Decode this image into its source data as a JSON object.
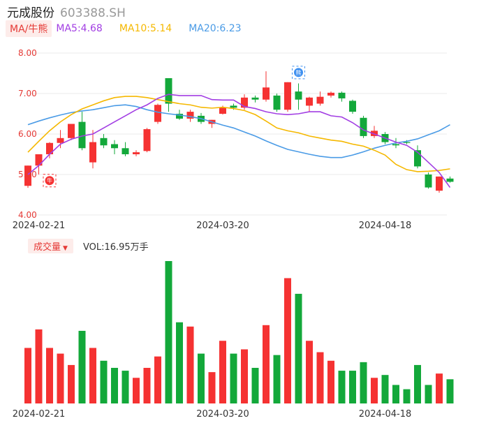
{
  "header": {
    "name": "元成股份",
    "code": "603388.SH"
  },
  "ma_bar": {
    "tag": "MA/牛熊",
    "items": [
      {
        "label": "MA5:4.68",
        "color": "#a23ee3"
      },
      {
        "label": "MA10:5.14",
        "color": "#f5b800"
      },
      {
        "label": "MA20:6.23",
        "color": "#4a9be6"
      }
    ]
  },
  "volume_bar": {
    "tag": "成交量",
    "arrow": "▼",
    "text": "VOL:16.95万手"
  },
  "markers": {
    "bull": "牛",
    "bear": "熊"
  },
  "colors": {
    "up": "#f53232",
    "down": "#13a83a",
    "grid": "#ebebeb",
    "axis_label": "#e53935"
  },
  "chart_data": [
    {
      "type": "candlestick",
      "ylim": [
        4.0,
        8.0
      ],
      "y_ticks": [
        "8.00",
        "7.00",
        "6.00",
        "5.00",
        "4.00"
      ],
      "x_tick_labels": [
        "2024-02-21",
        "2024-03-20",
        "2024-04-18"
      ],
      "x_tick_index": [
        1,
        18,
        33
      ],
      "candles": [
        {
          "o": 4.72,
          "h": 5.22,
          "l": 4.67,
          "c": 5.22
        },
        {
          "o": 5.22,
          "h": 5.5,
          "l": 5.0,
          "c": 5.5
        },
        {
          "o": 5.5,
          "h": 5.8,
          "l": 5.4,
          "c": 5.78
        },
        {
          "o": 5.78,
          "h": 6.1,
          "l": 5.65,
          "c": 5.9
        },
        {
          "o": 5.9,
          "h": 6.25,
          "l": 5.85,
          "c": 6.25
        },
        {
          "o": 6.3,
          "h": 6.55,
          "l": 5.6,
          "c": 5.65
        },
        {
          "o": 5.3,
          "h": 6.1,
          "l": 5.15,
          "c": 5.8
        },
        {
          "o": 5.9,
          "h": 6.0,
          "l": 5.65,
          "c": 5.72
        },
        {
          "o": 5.75,
          "h": 5.85,
          "l": 5.5,
          "c": 5.65
        },
        {
          "o": 5.65,
          "h": 5.8,
          "l": 5.45,
          "c": 5.5
        },
        {
          "o": 5.5,
          "h": 5.6,
          "l": 5.45,
          "c": 5.55
        },
        {
          "o": 5.58,
          "h": 6.15,
          "l": 5.55,
          "c": 6.12
        },
        {
          "o": 6.3,
          "h": 6.75,
          "l": 6.25,
          "c": 6.72
        },
        {
          "o": 7.38,
          "h": 7.38,
          "l": 6.55,
          "c": 6.75
        },
        {
          "o": 6.5,
          "h": 6.6,
          "l": 6.35,
          "c": 6.38
        },
        {
          "o": 6.38,
          "h": 6.6,
          "l": 6.3,
          "c": 6.55
        },
        {
          "o": 6.45,
          "h": 6.52,
          "l": 6.25,
          "c": 6.3
        },
        {
          "o": 6.25,
          "h": 6.35,
          "l": 6.15,
          "c": 6.35
        },
        {
          "o": 6.5,
          "h": 6.7,
          "l": 6.48,
          "c": 6.65
        },
        {
          "o": 6.7,
          "h": 6.75,
          "l": 6.6,
          "c": 6.65
        },
        {
          "o": 6.65,
          "h": 6.98,
          "l": 6.6,
          "c": 6.9
        },
        {
          "o": 6.9,
          "h": 6.95,
          "l": 6.78,
          "c": 6.85
        },
        {
          "o": 6.85,
          "h": 7.55,
          "l": 6.8,
          "c": 7.15
        },
        {
          "o": 6.95,
          "h": 7.0,
          "l": 6.55,
          "c": 6.6
        },
        {
          "o": 6.6,
          "h": 7.28,
          "l": 6.55,
          "c": 7.28
        },
        {
          "o": 7.05,
          "h": 7.25,
          "l": 6.6,
          "c": 6.85
        },
        {
          "o": 6.7,
          "h": 6.92,
          "l": 6.55,
          "c": 6.9
        },
        {
          "o": 6.75,
          "h": 7.05,
          "l": 6.7,
          "c": 6.92
        },
        {
          "o": 6.95,
          "h": 7.05,
          "l": 6.9,
          "c": 7.02
        },
        {
          "o": 7.02,
          "h": 7.05,
          "l": 6.8,
          "c": 6.88
        },
        {
          "o": 6.82,
          "h": 6.85,
          "l": 6.5,
          "c": 6.55
        },
        {
          "o": 6.4,
          "h": 6.45,
          "l": 5.9,
          "c": 5.95
        },
        {
          "o": 5.95,
          "h": 6.2,
          "l": 5.9,
          "c": 6.08
        },
        {
          "o": 6.0,
          "h": 6.05,
          "l": 5.75,
          "c": 5.8
        },
        {
          "o": 5.75,
          "h": 5.9,
          "l": 5.65,
          "c": 5.72
        },
        {
          "o": 5.8,
          "h": 5.85,
          "l": 5.75,
          "c": 5.78
        },
        {
          "o": 5.6,
          "h": 5.72,
          "l": 5.15,
          "c": 5.2
        },
        {
          "o": 5.0,
          "h": 5.05,
          "l": 4.65,
          "c": 4.68
        },
        {
          "o": 4.6,
          "h": 4.95,
          "l": 4.55,
          "c": 4.95
        },
        {
          "o": 4.9,
          "h": 4.95,
          "l": 4.8,
          "c": 4.82
        }
      ],
      "ma5": [
        5.0,
        5.22,
        5.5,
        5.75,
        5.87,
        5.95,
        6.0,
        6.15,
        6.3,
        6.45,
        6.6,
        6.72,
        6.88,
        6.98,
        6.95,
        6.95,
        6.95,
        6.85,
        6.84,
        6.84,
        6.68,
        6.63,
        6.55,
        6.5,
        6.48,
        6.5,
        6.55,
        6.55,
        6.45,
        6.42,
        6.28,
        6.1,
        6.0,
        5.9,
        5.8,
        5.72,
        5.55,
        5.3,
        5.05,
        4.68
      ],
      "ma10": [
        5.55,
        5.82,
        6.08,
        6.3,
        6.48,
        6.62,
        6.72,
        6.82,
        6.9,
        6.93,
        6.93,
        6.9,
        6.85,
        6.8,
        6.75,
        6.72,
        6.66,
        6.64,
        6.66,
        6.63,
        6.58,
        6.48,
        6.32,
        6.15,
        6.08,
        6.03,
        5.95,
        5.9,
        5.85,
        5.82,
        5.75,
        5.7,
        5.6,
        5.48,
        5.25,
        5.12,
        5.07,
        5.08,
        5.1,
        5.14
      ],
      "ma20": [
        6.23,
        6.32,
        6.4,
        6.47,
        6.53,
        6.57,
        6.6,
        6.65,
        6.7,
        6.72,
        6.68,
        6.6,
        6.54,
        6.5,
        6.47,
        6.43,
        6.38,
        6.3,
        6.22,
        6.15,
        6.05,
        5.95,
        5.83,
        5.72,
        5.62,
        5.56,
        5.5,
        5.45,
        5.42,
        5.42,
        5.48,
        5.56,
        5.65,
        5.72,
        5.78,
        5.82,
        5.88,
        5.98,
        6.08,
        6.23
      ]
    },
    {
      "type": "bar",
      "ylim": [
        0,
        1
      ],
      "x_tick_labels": [
        "2024-02-21",
        "2024-03-20",
        "2024-04-18"
      ],
      "x_tick_index": [
        1,
        18,
        33
      ],
      "volumes": [
        0.39,
        0.52,
        0.39,
        0.35,
        0.27,
        0.51,
        0.39,
        0.3,
        0.25,
        0.23,
        0.18,
        0.25,
        0.33,
        1.0,
        0.57,
        0.54,
        0.35,
        0.22,
        0.44,
        0.35,
        0.38,
        0.25,
        0.55,
        0.34,
        0.88,
        0.77,
        0.44,
        0.36,
        0.3,
        0.23,
        0.23,
        0.29,
        0.18,
        0.2,
        0.13,
        0.1,
        0.27,
        0.13,
        0.21,
        0.17
      ]
    }
  ]
}
